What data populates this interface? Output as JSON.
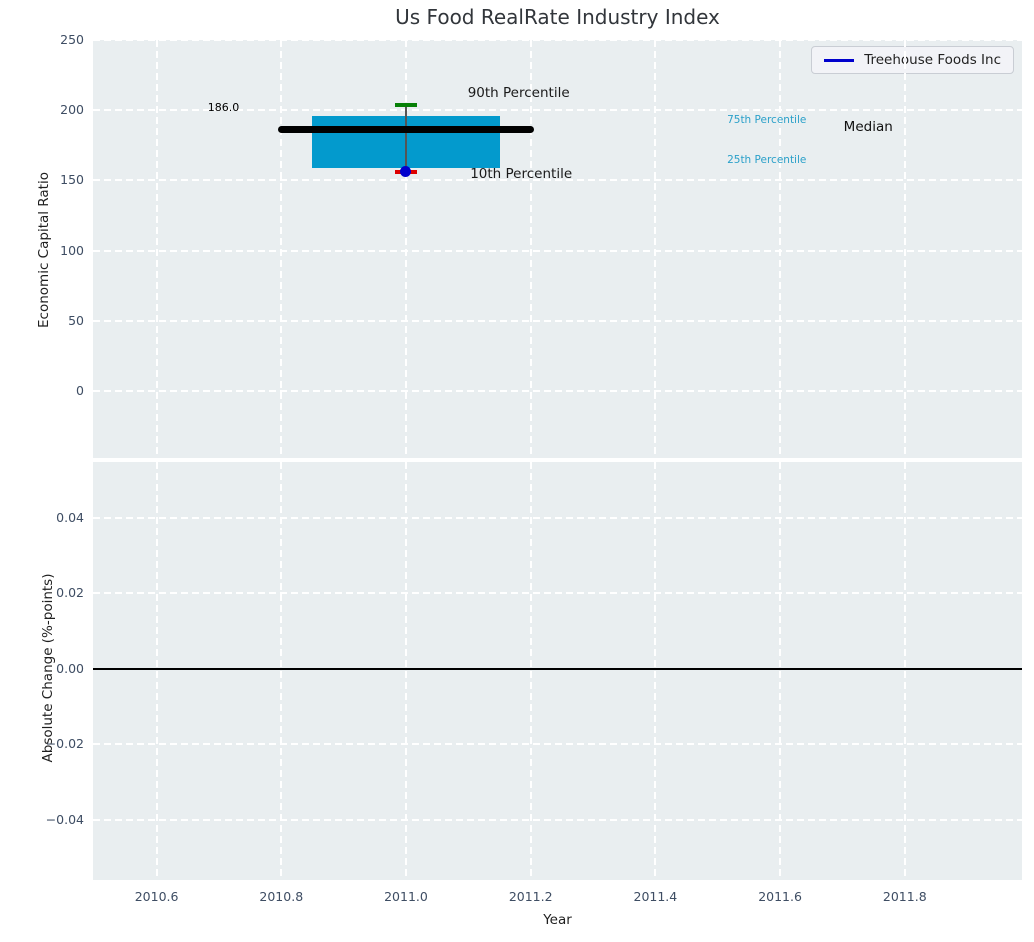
{
  "figure": {
    "title": "Us Food RealRate Industry Index",
    "background": "#ffffff"
  },
  "style": {
    "panel_background": "#e9eef0",
    "grid_color": "#ffffff",
    "tick_color": "#3e4d63",
    "text_color": "#1f1f1f",
    "percentile_label_color": "#2aa0c9"
  },
  "legend": {
    "label": "Treehouse Foods Inc",
    "line_color": "#0000cd",
    "position": "upper-right"
  },
  "axes": {
    "top": {
      "ylabel": "Economic Capital Ratio",
      "ytick_labels": [
        "250",
        "200",
        "150",
        "100",
        "50",
        "0"
      ],
      "ytick_values": [
        250,
        200,
        150,
        100,
        50,
        0
      ],
      "ylim": [
        -47.7,
        250
      ],
      "xlim": [
        2010.498,
        2011.988
      ]
    },
    "bottom": {
      "ylabel": "Absolute Change (%-points)",
      "xlabel": "Year",
      "ytick_labels": [
        "0.04",
        "0.02",
        "0.00",
        "−0.02",
        "−0.04"
      ],
      "ytick_values": [
        0.04,
        0.02,
        0.0,
        -0.02,
        -0.04
      ],
      "ylim": [
        -0.0559,
        0.0548
      ],
      "xtick_labels": [
        "2010.6",
        "2010.8",
        "2011.0",
        "2011.2",
        "2011.4",
        "2011.6",
        "2011.8"
      ],
      "xtick_values": [
        2010.6,
        2010.8,
        2011.0,
        2011.2,
        2011.4,
        2011.6,
        2011.8
      ],
      "xlim": [
        2010.498,
        2011.988
      ]
    }
  },
  "chart_data": [
    {
      "type": "box",
      "title": "Us Food RealRate Industry Index",
      "ylabel": "Economic Capital Ratio",
      "xlim": [
        2010.498,
        2011.988
      ],
      "ylim": [
        -47.7,
        250
      ],
      "grid": true,
      "legend_position": "upper right",
      "boxes": [
        {
          "x": 2011.0,
          "median": 186.0,
          "q1": 159.0,
          "q3": 196.0,
          "p10": 158.0,
          "p90": 203.5,
          "box_halfwidth": 0.15,
          "median_halfwidth": 0.205,
          "cap_halfwidth": 0.018,
          "box_color": "#039acd",
          "median_color": "#000000",
          "whisker_color": "#555555",
          "p90_cap_color": "#078007",
          "p10_cap_color": "#dd0000"
        }
      ],
      "points": [
        {
          "name": "Treehouse Foods Inc",
          "x": 2011.0,
          "y": 158.0,
          "color": "#0000cd"
        }
      ],
      "annotations": [
        {
          "text": "186.0",
          "x": 2010.682,
          "y": 201.0,
          "color": "#000000",
          "size": 11,
          "name": "median-value-annotation"
        },
        {
          "text": "90th Percentile",
          "x": 2011.099,
          "y": 210.5,
          "color": "#1a1a1a",
          "size": 13.5,
          "name": "p90-label"
        },
        {
          "text": "10th Percentile",
          "x": 2011.103,
          "y": 153.0,
          "color": "#1a1a1a",
          "size": 13.5,
          "name": "p10-label"
        },
        {
          "text": "75th Percentile",
          "x": 2011.515,
          "y": 192.0,
          "color": "#2aa0c9",
          "size": 10.5,
          "name": "p75-label"
        },
        {
          "text": "25th Percentile",
          "x": 2011.515,
          "y": 163.5,
          "color": "#2aa0c9",
          "size": 10.5,
          "name": "p25-label"
        },
        {
          "text": "Median",
          "x": 2011.702,
          "y": 186.5,
          "color": "#111111",
          "size": 13.5,
          "name": "median-label"
        }
      ]
    },
    {
      "type": "line",
      "xlabel": "Year",
      "ylabel": "Absolute Change (%-points)",
      "xlim": [
        2010.498,
        2011.988
      ],
      "ylim": [
        -0.0559,
        0.0548
      ],
      "grid": true,
      "series": [
        {
          "name": "zero-reference-line",
          "y_constant": 0.0,
          "color": "#000000"
        }
      ]
    }
  ]
}
